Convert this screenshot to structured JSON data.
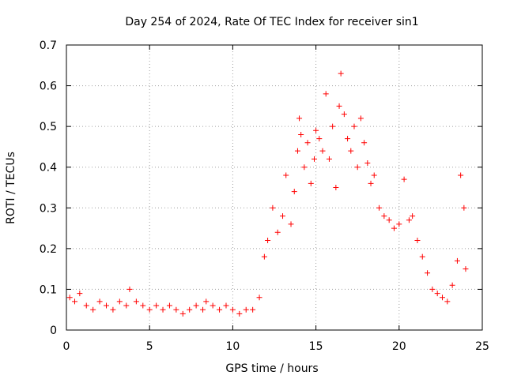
{
  "chart_data": {
    "type": "scatter",
    "title": "Day 254 of 2024, Rate Of TEC Index for receiver sin1",
    "xlabel": "GPS time / hours",
    "ylabel": "ROTI / TECUs",
    "xlim": [
      0,
      25
    ],
    "ylim": [
      0,
      0.7
    ],
    "xticks": [
      0,
      5,
      10,
      15,
      20,
      25
    ],
    "yticks": [
      0,
      0.1,
      0.2,
      0.3,
      0.4,
      0.5,
      0.6,
      0.7
    ],
    "xtick_labels": [
      "0",
      "5",
      "10",
      "15",
      "20",
      "25"
    ],
    "ytick_labels": [
      "0",
      "0.1",
      "0.2",
      "0.3",
      "0.4",
      "0.5",
      "0.6",
      "0.7"
    ],
    "grid": true,
    "marker": "+",
    "marker_color": "#ff0000",
    "series": [
      {
        "name": "sin1",
        "x": [
          0.2,
          0.5,
          0.8,
          1.2,
          1.6,
          2.0,
          2.4,
          2.8,
          3.2,
          3.6,
          3.8,
          4.2,
          4.6,
          5.0,
          5.4,
          5.8,
          6.2,
          6.6,
          7.0,
          7.4,
          7.8,
          8.2,
          8.4,
          8.8,
          9.2,
          9.6,
          10.0,
          10.4,
          10.8,
          11.2,
          11.6,
          11.9,
          12.1,
          12.4,
          12.7,
          13.0,
          13.2,
          13.5,
          13.7,
          13.9,
          14.0,
          14.1,
          14.3,
          14.5,
          14.7,
          14.9,
          15.0,
          15.2,
          15.4,
          15.6,
          15.8,
          16.0,
          16.2,
          16.4,
          16.5,
          16.7,
          16.9,
          17.1,
          17.3,
          17.5,
          17.7,
          17.9,
          18.1,
          18.3,
          18.5,
          18.8,
          19.1,
          19.4,
          19.7,
          20.0,
          20.3,
          20.6,
          20.8,
          21.1,
          21.4,
          21.7,
          22.0,
          22.3,
          22.6,
          22.9,
          23.2,
          23.5,
          23.7,
          23.9,
          24.0
        ],
        "y": [
          0.08,
          0.07,
          0.09,
          0.06,
          0.05,
          0.07,
          0.06,
          0.05,
          0.07,
          0.06,
          0.1,
          0.07,
          0.06,
          0.05,
          0.06,
          0.05,
          0.06,
          0.05,
          0.04,
          0.05,
          0.06,
          0.05,
          0.07,
          0.06,
          0.05,
          0.06,
          0.05,
          0.04,
          0.05,
          0.05,
          0.08,
          0.18,
          0.22,
          0.3,
          0.24,
          0.28,
          0.38,
          0.26,
          0.34,
          0.44,
          0.52,
          0.48,
          0.4,
          0.46,
          0.36,
          0.42,
          0.49,
          0.47,
          0.44,
          0.58,
          0.42,
          0.5,
          0.35,
          0.55,
          0.63,
          0.53,
          0.47,
          0.44,
          0.5,
          0.4,
          0.52,
          0.46,
          0.41,
          0.36,
          0.38,
          0.3,
          0.28,
          0.27,
          0.25,
          0.26,
          0.37,
          0.27,
          0.28,
          0.22,
          0.18,
          0.14,
          0.1,
          0.09,
          0.08,
          0.07,
          0.11,
          0.17,
          0.38,
          0.3,
          0.15
        ]
      }
    ]
  }
}
